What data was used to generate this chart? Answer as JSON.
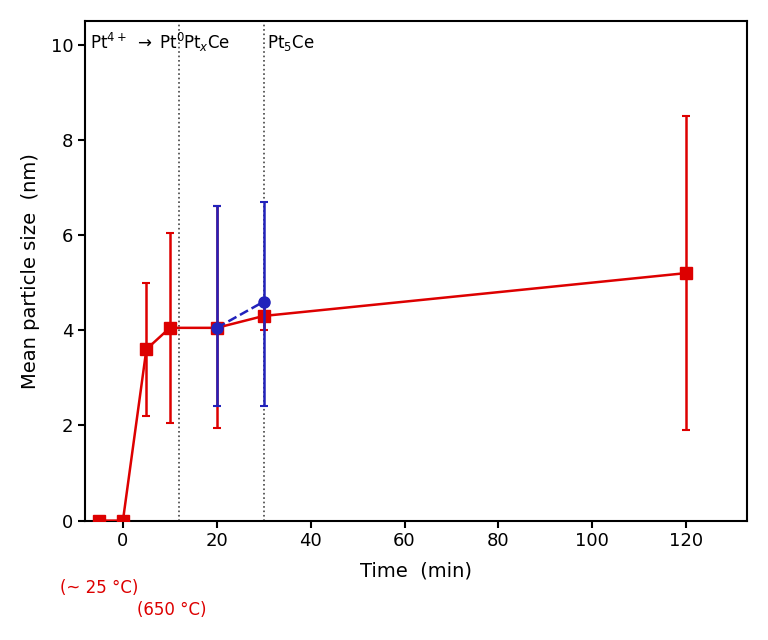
{
  "red_x": [
    -5,
    0,
    5,
    10,
    20,
    30,
    120
  ],
  "red_y": [
    0.0,
    0.0,
    3.6,
    4.05,
    4.05,
    4.3,
    5.2
  ],
  "red_yerr_lo": [
    0,
    0,
    1.4,
    2.0,
    2.1,
    0.3,
    3.3
  ],
  "red_yerr_hi": [
    0,
    0,
    1.4,
    2.0,
    2.55,
    0.3,
    3.3
  ],
  "blue_x": [
    20,
    30
  ],
  "blue_y": [
    4.05,
    4.6
  ],
  "blue_yerr_lo": [
    1.65,
    2.2
  ],
  "blue_yerr_hi": [
    2.55,
    2.1
  ],
  "vline1_x": 12,
  "vline2_x": 30,
  "xlabel": "Time  (min)",
  "ylabel": "Mean particle size  (nm)",
  "xlim": [
    -8,
    133
  ],
  "ylim": [
    0,
    10.5
  ],
  "xticks": [
    0,
    20,
    40,
    60,
    80,
    100,
    120
  ],
  "yticks": [
    0,
    2,
    4,
    6,
    8,
    10
  ],
  "red_color": "#dd0000",
  "blue_color": "#2222bb",
  "marker_size": 8,
  "linewidth": 1.8
}
